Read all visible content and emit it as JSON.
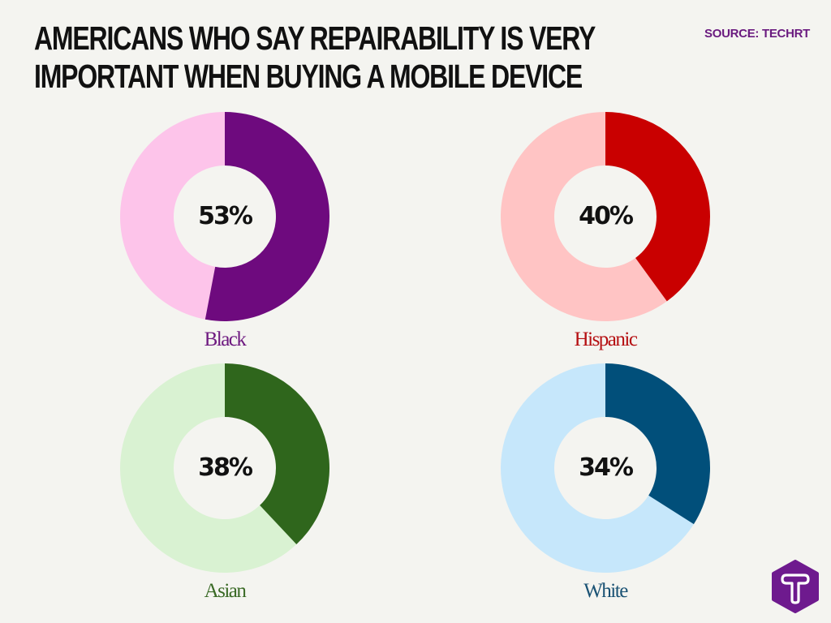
{
  "header": {
    "title_lines": [
      "AMERICANS WHO SAY REPAIRABILITY IS VERY",
      "IMPORTANT WHEN BUYING A MOBILE DEVICE"
    ],
    "source": "SOURCE: TECHRT"
  },
  "charts": [
    {
      "label": "Black",
      "value": 53,
      "value_text": "53%",
      "color": "#6e0a7e",
      "rest_color": "#fdc4ea",
      "label_color": "#6e1a80"
    },
    {
      "label": "Hispanic",
      "value": 40,
      "value_text": "40%",
      "color": "#c90000",
      "rest_color": "#ffc4c4",
      "label_color": "#b50f12"
    },
    {
      "label": "Asian",
      "value": 38,
      "value_text": "38%",
      "color": "#2f661c",
      "rest_color": "#d9f2d2",
      "label_color": "#3a6a26"
    },
    {
      "label": "White",
      "value": 34,
      "value_text": "34%",
      "color": "#014f7a",
      "rest_color": "#c6e7fb",
      "label_color": "#1a5274"
    }
  ],
  "logo": {
    "icon": "techrt-logo-icon",
    "letter": "T",
    "color": "#6e1a8e"
  },
  "chart_data": {
    "type": "pie",
    "subtype": "donut",
    "title": "Americans who say repairability is very important when buying a mobile device",
    "source": "SOURCE: TECHRT",
    "categories": [
      "Black",
      "Hispanic",
      "Asian",
      "White"
    ],
    "values": [
      53,
      40,
      38,
      34
    ],
    "unit": "%",
    "layout": "2x2 grid of donut charts, each showing percentage vs remainder"
  }
}
